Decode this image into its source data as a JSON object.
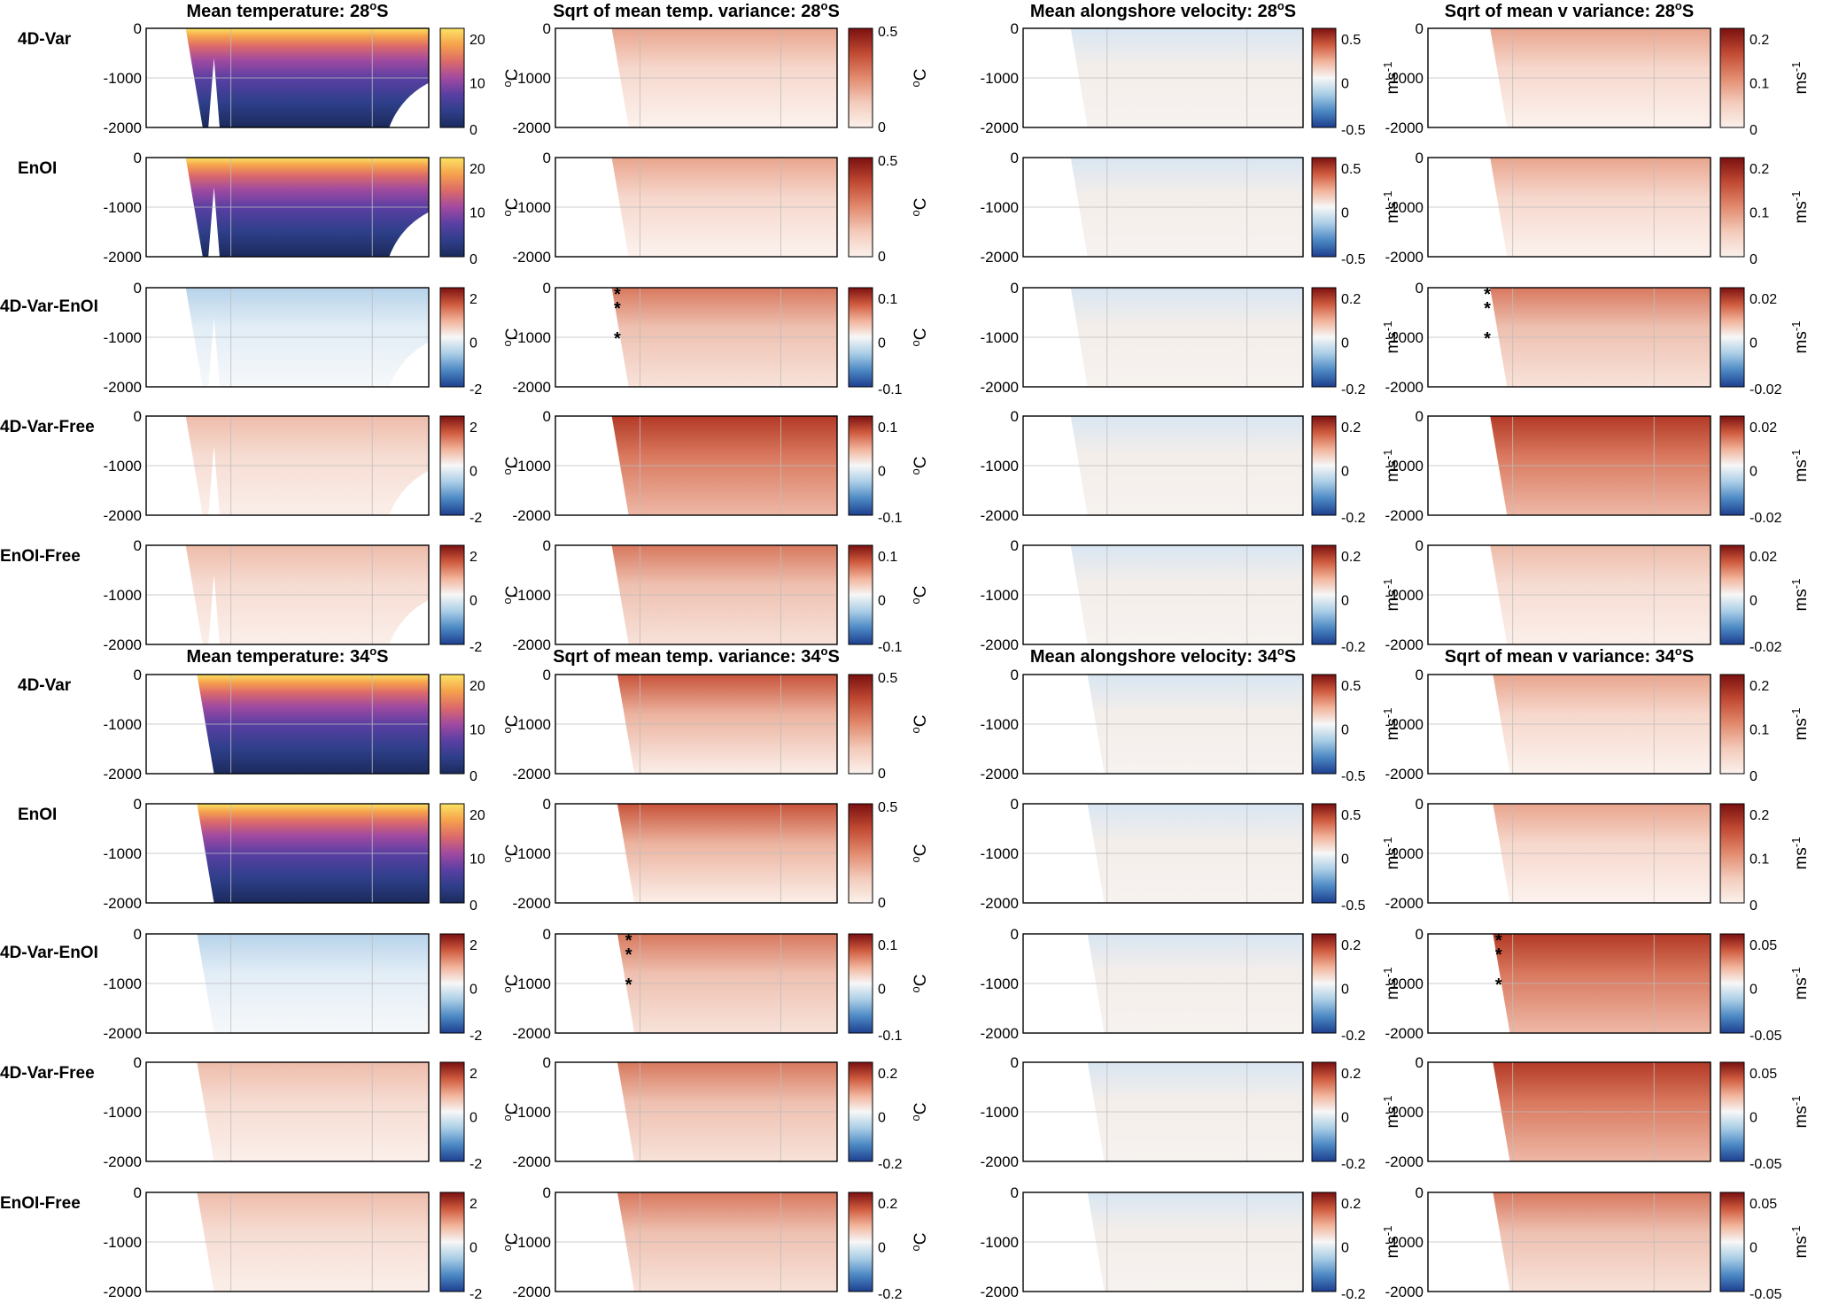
{
  "figure": {
    "blocks": [
      {
        "titles": [
          "Mean temperature: 28",
          "Sqrt of mean temp. variance: 28",
          "Mean alongshore velocity: 28",
          "Sqrt of mean v variance: 28"
        ],
        "title_suffix": "S",
        "title_sup": "o",
        "rows": [
          "4D-Var",
          "EnOI",
          "4D-Var-EnOI",
          "4D-Var-Free",
          "EnOI-Free"
        ]
      },
      {
        "titles": [
          "Mean temperature: 34",
          "Sqrt of mean temp. variance: 34",
          "Mean alongshore velocity: 34",
          "Sqrt of mean v variance: 34"
        ],
        "title_suffix": "S",
        "title_sup": "o",
        "rows": [
          "4D-Var",
          "EnOI",
          "4D-Var-EnOI",
          "4D-Var-Free",
          "EnOI-Free"
        ]
      }
    ],
    "y_ticks": [
      "0",
      "-1000",
      "-2000"
    ],
    "unit_temp": "C",
    "unit_temp_sup": "o",
    "unit_vel": "ms",
    "unit_vel_sup": "-1",
    "asterisk": "*",
    "colormaps": {
      "thermal": [
        "#1b2a5c",
        "#2e3f8a",
        "#5a3fa3",
        "#a14aa0",
        "#dc6a6a",
        "#f6a14c",
        "#fbe363"
      ],
      "diverging": [
        "#1d3f8f",
        "#4c88c4",
        "#a9cde6",
        "#f7f7f7",
        "#f1b39a",
        "#cf5a3e",
        "#7a1010"
      ],
      "sequential": [
        "#fbf1ec",
        "#f3cbbb",
        "#e28b6f",
        "#c14a33",
        "#7a1010"
      ]
    },
    "colorbars": {
      "28": [
        [
          {
            "map": "thermal",
            "ticks": [
              "20",
              "10",
              "0"
            ]
          },
          {
            "map": "sequential",
            "ticks": [
              "0.5",
              "0"
            ]
          },
          {
            "map": "diverging",
            "ticks": [
              "0.5",
              "0",
              "-0.5"
            ]
          },
          {
            "map": "sequential",
            "ticks": [
              "0.2",
              "0.1",
              "0"
            ]
          }
        ],
        [
          {
            "map": "thermal",
            "ticks": [
              "20",
              "10",
              "0"
            ]
          },
          {
            "map": "sequential",
            "ticks": [
              "0.5",
              "0"
            ]
          },
          {
            "map": "diverging",
            "ticks": [
              "0.5",
              "0",
              "-0.5"
            ]
          },
          {
            "map": "sequential",
            "ticks": [
              "0.2",
              "0.1",
              "0"
            ]
          }
        ],
        [
          {
            "map": "diverging",
            "ticks": [
              "2",
              "0",
              "-2"
            ]
          },
          {
            "map": "diverging",
            "ticks": [
              "0.1",
              "0",
              "-0.1"
            ]
          },
          {
            "map": "diverging",
            "ticks": [
              "0.2",
              "0",
              "-0.2"
            ]
          },
          {
            "map": "diverging",
            "ticks": [
              "0.02",
              "0",
              "-0.02"
            ]
          }
        ],
        [
          {
            "map": "diverging",
            "ticks": [
              "2",
              "0",
              "-2"
            ]
          },
          {
            "map": "diverging",
            "ticks": [
              "0.1",
              "0",
              "-0.1"
            ]
          },
          {
            "map": "diverging",
            "ticks": [
              "0.2",
              "0",
              "-0.2"
            ]
          },
          {
            "map": "diverging",
            "ticks": [
              "0.02",
              "0",
              "-0.02"
            ]
          }
        ],
        [
          {
            "map": "diverging",
            "ticks": [
              "2",
              "0",
              "-2"
            ]
          },
          {
            "map": "diverging",
            "ticks": [
              "0.1",
              "0",
              "-0.1"
            ]
          },
          {
            "map": "diverging",
            "ticks": [
              "0.2",
              "0",
              "-0.2"
            ]
          },
          {
            "map": "diverging",
            "ticks": [
              "0.02",
              "0",
              "-0.02"
            ]
          }
        ]
      ],
      "34": [
        [
          {
            "map": "thermal",
            "ticks": [
              "20",
              "10",
              "0"
            ]
          },
          {
            "map": "sequential",
            "ticks": [
              "0.5",
              "0"
            ]
          },
          {
            "map": "diverging",
            "ticks": [
              "0.5",
              "0",
              "-0.5"
            ]
          },
          {
            "map": "sequential",
            "ticks": [
              "0.2",
              "0.1",
              "0"
            ]
          }
        ],
        [
          {
            "map": "thermal",
            "ticks": [
              "20",
              "10",
              "0"
            ]
          },
          {
            "map": "sequential",
            "ticks": [
              "0.5",
              "0"
            ]
          },
          {
            "map": "diverging",
            "ticks": [
              "0.5",
              "0",
              "-0.5"
            ]
          },
          {
            "map": "sequential",
            "ticks": [
              "0.2",
              "0.1",
              "0"
            ]
          }
        ],
        [
          {
            "map": "diverging",
            "ticks": [
              "2",
              "0",
              "-2"
            ]
          },
          {
            "map": "diverging",
            "ticks": [
              "0.1",
              "0",
              "-0.1"
            ]
          },
          {
            "map": "diverging",
            "ticks": [
              "0.2",
              "0",
              "-0.2"
            ]
          },
          {
            "map": "diverging",
            "ticks": [
              "0.05",
              "0",
              "-0.05"
            ]
          }
        ],
        [
          {
            "map": "diverging",
            "ticks": [
              "2",
              "0",
              "-2"
            ]
          },
          {
            "map": "diverging",
            "ticks": [
              "0.2",
              "0",
              "-0.2"
            ]
          },
          {
            "map": "diverging",
            "ticks": [
              "0.2",
              "0",
              "-0.2"
            ]
          },
          {
            "map": "diverging",
            "ticks": [
              "0.05",
              "0",
              "-0.05"
            ]
          }
        ],
        [
          {
            "map": "diverging",
            "ticks": [
              "2",
              "0",
              "-2"
            ]
          },
          {
            "map": "diverging",
            "ticks": [
              "0.2",
              "0",
              "-0.2"
            ]
          },
          {
            "map": "diverging",
            "ticks": [
              "0.2",
              "0",
              "-0.2"
            ]
          },
          {
            "map": "diverging",
            "ticks": [
              "0.05",
              "0",
              "-0.05"
            ]
          }
        ]
      ]
    }
  },
  "chart_data": {
    "type": "heatmap",
    "panels_per_latitude": 20,
    "latitudes": [
      "28S",
      "34S"
    ],
    "variables": [
      "Mean temperature",
      "Sqrt of mean temp. variance",
      "Mean alongshore velocity",
      "Sqrt of mean v variance"
    ],
    "rows": [
      "4D-Var",
      "EnOI",
      "4D-Var-EnOI",
      "4D-Var-Free",
      "EnOI-Free"
    ],
    "ylim": [
      -2000,
      0
    ],
    "y_ticks": [
      0,
      -1000,
      -2000
    ],
    "colorbar_ranges": {
      "28S": {
        "Mean temperature": {
          "4D-Var": [
            0,
            25
          ],
          "EnOI": [
            0,
            25
          ],
          "4D-Var-EnOI": [
            -2,
            2
          ],
          "4D-Var-Free": [
            -2,
            2
          ],
          "EnOI-Free": [
            -2,
            2
          ]
        },
        "Sqrt of mean temp. variance": {
          "4D-Var": [
            0,
            0.5
          ],
          "EnOI": [
            0,
            0.5
          ],
          "4D-Var-EnOI": [
            -0.1,
            0.1
          ],
          "4D-Var-Free": [
            -0.1,
            0.1
          ],
          "EnOI-Free": [
            -0.1,
            0.1
          ]
        },
        "Mean alongshore velocity": {
          "4D-Var": [
            -0.5,
            0.5
          ],
          "EnOI": [
            -0.5,
            0.5
          ],
          "4D-Var-EnOI": [
            -0.2,
            0.2
          ],
          "4D-Var-Free": [
            -0.2,
            0.2
          ],
          "EnOI-Free": [
            -0.2,
            0.2
          ]
        },
        "Sqrt of mean v variance": {
          "4D-Var": [
            0,
            0.2
          ],
          "EnOI": [
            0,
            0.2
          ],
          "4D-Var-EnOI": [
            -0.02,
            0.02
          ],
          "4D-Var-Free": [
            -0.02,
            0.02
          ],
          "EnOI-Free": [
            -0.02,
            0.02
          ]
        }
      },
      "34S": {
        "Mean temperature": {
          "4D-Var": [
            0,
            25
          ],
          "EnOI": [
            0,
            25
          ],
          "4D-Var-EnOI": [
            -2,
            2
          ],
          "4D-Var-Free": [
            -2,
            2
          ],
          "EnOI-Free": [
            -2,
            2
          ]
        },
        "Sqrt of mean temp. variance": {
          "4D-Var": [
            0,
            0.5
          ],
          "EnOI": [
            0,
            0.5
          ],
          "4D-Var-EnOI": [
            -0.1,
            0.1
          ],
          "4D-Var-Free": [
            -0.2,
            0.2
          ],
          "EnOI-Free": [
            -0.2,
            0.2
          ]
        },
        "Mean alongshore velocity": {
          "4D-Var": [
            -0.5,
            0.5
          ],
          "EnOI": [
            -0.5,
            0.5
          ],
          "4D-Var-EnOI": [
            -0.2,
            0.2
          ],
          "4D-Var-Free": [
            -0.2,
            0.2
          ],
          "EnOI-Free": [
            -0.2,
            0.2
          ]
        },
        "Sqrt of mean v variance": {
          "4D-Var": [
            0,
            0.2
          ],
          "EnOI": [
            0,
            0.2
          ],
          "4D-Var-EnOI": [
            -0.05,
            0.05
          ],
          "4D-Var-Free": [
            -0.05,
            0.05
          ],
          "EnOI-Free": [
            -0.05,
            0.05
          ]
        }
      }
    },
    "asterisk_panels": [
      "28S 4D-Var-EnOI temp variance",
      "28S 4D-Var-EnOI v variance",
      "34S 4D-Var-EnOI temp variance",
      "34S 4D-Var-EnOI v variance"
    ]
  }
}
